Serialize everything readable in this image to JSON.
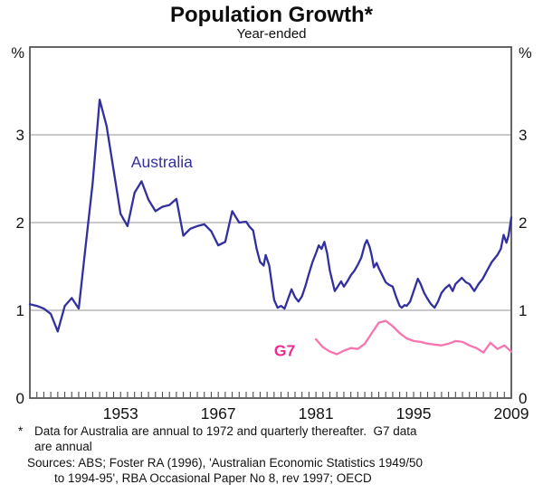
{
  "title": "Population Growth*",
  "subtitle": "Year-ended",
  "footnotes": {
    "marker": "*",
    "note_lines": [
      "Data for Australia are annual to 1972 and quarterly thereafter.  G7 data",
      "are annual"
    ],
    "sources_lines": [
      "Sources: ABS; Foster RA (1996), 'Australian Economic Statistics 1949/50",
      "to 1994-95', RBA Occasional Paper No 8, rev 1997; OECD"
    ]
  },
  "chart_data": {
    "type": "line",
    "title": "Population Growth*",
    "subtitle": "Year-ended",
    "unit_label_left": "%",
    "unit_label_right": "%",
    "xlim": [
      1940,
      2009
    ],
    "ylim": [
      0,
      4
    ],
    "grid": "horizontal-only",
    "y_gridlines": [
      1,
      2,
      3
    ],
    "y_tick_labels": [
      "0",
      "1",
      "2",
      "3"
    ],
    "x_tick_labels": [
      "1953",
      "1967",
      "1981",
      "1995",
      "2009"
    ],
    "x_tick_label_years": [
      1953,
      1967,
      1981,
      1995,
      2009
    ],
    "minor_x_tick_interval_years": 1,
    "legend_position": "inline-labels",
    "frame_color": "#4b4b4d",
    "grid_color": "#a9a9ab",
    "series": [
      {
        "name": "Australia",
        "color": "#32309f",
        "label_color": "#3230a2",
        "label_bold": false,
        "label_anchor": {
          "x": 1954.5,
          "y": 2.63
        },
        "x": [
          1940,
          1941,
          1942,
          1943,
          1944,
          1945,
          1946,
          1947,
          1948,
          1949,
          1950,
          1951,
          1952,
          1953,
          1954,
          1955,
          1956,
          1957,
          1958,
          1959,
          1960,
          1961,
          1962,
          1963,
          1964,
          1965,
          1966,
          1967,
          1968,
          1969,
          1970,
          1971,
          1971.5,
          1972,
          1972.5,
          1973,
          1973.5,
          1973.8,
          1974.3,
          1974.7,
          1975,
          1975.5,
          1976,
          1976.5,
          1977,
          1977.5,
          1978,
          1978.5,
          1979,
          1979.5,
          1980,
          1980.5,
          1981,
          1981.4,
          1981.8,
          1982.2,
          1982.6,
          1983,
          1983.7,
          1984.2,
          1984.6,
          1985,
          1985.5,
          1986,
          1986.5,
          1987,
          1987.5,
          1988,
          1988.3,
          1988.7,
          1989,
          1989.3,
          1989.7,
          1990,
          1990.5,
          1991,
          1991.5,
          1992,
          1992.5,
          1993,
          1993.3,
          1993.7,
          1994,
          1994.5,
          1995,
          1995.6,
          1996,
          1996.5,
          1997,
          1997.5,
          1998,
          1998.5,
          1999,
          1999.5,
          2000.1,
          2000.6,
          2001,
          2001.9,
          2002.5,
          2003,
          2003.7,
          2004.3,
          2004.9,
          2005.5,
          2006.2,
          2007,
          2007.5,
          2007.9,
          2008.3,
          2008.6,
          2009
        ],
        "values": [
          1.07,
          1.05,
          1.02,
          0.96,
          0.76,
          1.05,
          1.14,
          1.02,
          1.74,
          2.45,
          3.4,
          3.1,
          2.6,
          2.1,
          1.96,
          2.34,
          2.47,
          2.26,
          2.13,
          2.18,
          2.2,
          2.27,
          1.85,
          1.93,
          1.96,
          1.98,
          1.9,
          1.74,
          1.78,
          2.13,
          2.0,
          2.01,
          1.95,
          1.91,
          1.7,
          1.55,
          1.51,
          1.63,
          1.51,
          1.29,
          1.12,
          1.03,
          1.05,
          1.02,
          1.13,
          1.24,
          1.15,
          1.1,
          1.16,
          1.28,
          1.42,
          1.55,
          1.65,
          1.74,
          1.7,
          1.78,
          1.65,
          1.45,
          1.22,
          1.28,
          1.33,
          1.27,
          1.33,
          1.4,
          1.45,
          1.52,
          1.6,
          1.75,
          1.8,
          1.72,
          1.62,
          1.49,
          1.54,
          1.48,
          1.4,
          1.32,
          1.29,
          1.27,
          1.15,
          1.05,
          1.03,
          1.06,
          1.05,
          1.1,
          1.22,
          1.36,
          1.3,
          1.2,
          1.13,
          1.07,
          1.03,
          1.1,
          1.2,
          1.25,
          1.29,
          1.22,
          1.3,
          1.37,
          1.32,
          1.3,
          1.22,
          1.3,
          1.36,
          1.45,
          1.55,
          1.63,
          1.7,
          1.86,
          1.77,
          1.85,
          2.06
        ]
      },
      {
        "name": "G7",
        "color": "#f874ae",
        "label_color": "#ee2d92",
        "label_bold": true,
        "label_anchor": {
          "x": 1975.0,
          "y": 0.48
        },
        "x": [
          1981,
          1982,
          1983,
          1984,
          1985,
          1986,
          1987,
          1988,
          1989,
          1990,
          1991,
          1992,
          1993,
          1994,
          1995,
          1996,
          1997,
          1998,
          1999,
          2000,
          2001,
          2002,
          2003,
          2004,
          2005,
          2006,
          2007,
          2008,
          2009
        ],
        "values": [
          0.67,
          0.58,
          0.53,
          0.5,
          0.54,
          0.57,
          0.56,
          0.62,
          0.74,
          0.86,
          0.88,
          0.82,
          0.74,
          0.68,
          0.65,
          0.64,
          0.62,
          0.61,
          0.6,
          0.62,
          0.65,
          0.64,
          0.6,
          0.57,
          0.52,
          0.63,
          0.56,
          0.6,
          0.53
        ]
      }
    ]
  }
}
